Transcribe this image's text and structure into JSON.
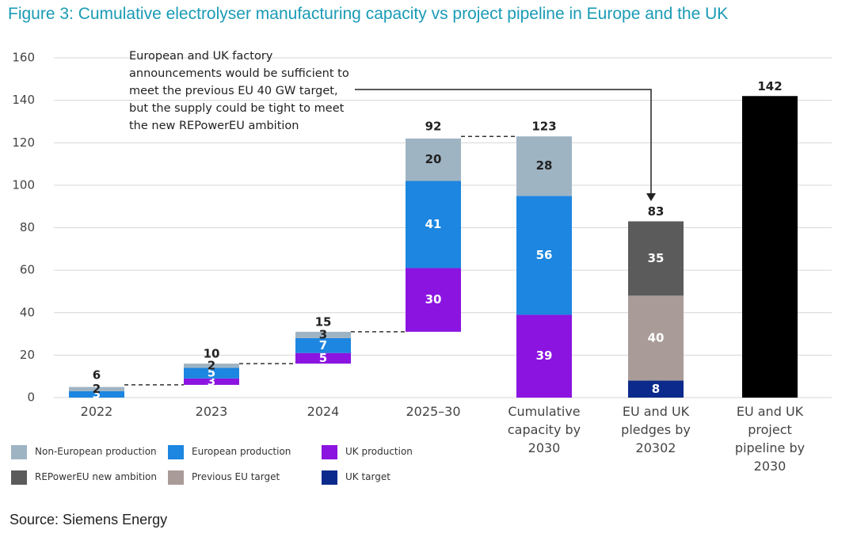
{
  "chart_data": {
    "type": "waterfall-stacked-bar",
    "title": "Figure 3: Cumulative electrolyser manufacturing capacity vs project pipeline in Europe and the UK",
    "source": "Source: Siemens Energy",
    "annotation": "European and UK factory announcements would be sufficient to meet the previous EU 40 GW target, but the supply could be tight to meet the new REPowerEU ambition",
    "categories": [
      "2022",
      "2023",
      "2024",
      "2025–30",
      "Cumulative capacity by 2030",
      "EU and UK pledges by 20302",
      "EU and UK project pipeline by 2030"
    ],
    "totals": [
      6,
      10,
      15,
      92,
      123,
      83,
      142
    ],
    "total_bar_color": "#000000",
    "series": [
      {
        "name": "Non-European production",
        "color": "#9fb4c3",
        "values": [
          2,
          2,
          3,
          20,
          28,
          null,
          null
        ]
      },
      {
        "name": "European production",
        "color": "#1c86e0",
        "values": [
          3,
          5,
          7,
          41,
          56,
          null,
          null
        ]
      },
      {
        "name": "UK production",
        "color": "#8b14e0",
        "values": [
          null,
          3,
          5,
          30,
          39,
          null,
          null
        ]
      },
      {
        "name": "REPowerEU new ambition",
        "color": "#5b5b5b",
        "values": [
          null,
          null,
          null,
          null,
          null,
          35,
          null
        ]
      },
      {
        "name": "Previous EU target",
        "color": "#a99b97",
        "values": [
          null,
          null,
          null,
          null,
          null,
          40,
          null
        ]
      },
      {
        "name": "UK target",
        "color": "#0b2a8c",
        "values": [
          null,
          null,
          null,
          null,
          null,
          8,
          null
        ]
      }
    ],
    "ylim": [
      0,
      160
    ],
    "yticks": [
      0,
      20,
      40,
      60,
      80,
      100,
      120,
      140,
      160
    ],
    "grid": true
  }
}
